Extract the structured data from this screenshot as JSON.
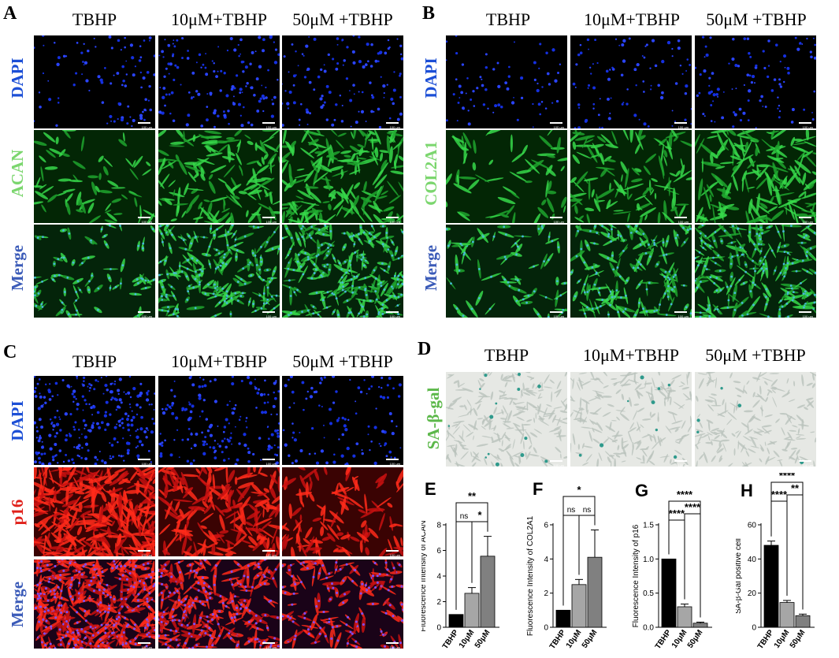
{
  "panels": {
    "A": {
      "label": "A",
      "columns": [
        "TBHP",
        "10μM+TBHP",
        "50μM +TBHP"
      ],
      "rows": [
        "DAPI",
        "ACAN",
        "Merge"
      ]
    },
    "B": {
      "label": "B",
      "columns": [
        "TBHP",
        "10μM+TBHP",
        "50μM +TBHP"
      ],
      "rows": [
        "DAPI",
        "COL2A1",
        "Merge"
      ]
    },
    "C": {
      "label": "C",
      "columns": [
        "TBHP",
        "10μM+TBHP",
        "50μM +TBHP"
      ],
      "rows": [
        "DAPI",
        "p16",
        "Merge"
      ]
    },
    "D": {
      "label": "D",
      "columns": [
        "TBHP",
        "10μM+TBHP",
        "50μM +TBHP"
      ],
      "rows": [
        "SA-β-gal"
      ]
    }
  },
  "scale_text": "100 μm",
  "colors": {
    "dapi": "#1a3cff",
    "green": "#2fd63a",
    "red": "#ff2a1a",
    "merge_blue": "#3b5bd0",
    "sa_green": "#5cb84a",
    "bar_black": "#000000",
    "bar_gray1": "#a6a6a6",
    "bar_gray2": "#808080"
  },
  "chart_data": [
    {
      "label": "E",
      "type": "bar",
      "categories": [
        "TBHP",
        "10μM",
        "50μM"
      ],
      "values": [
        1.0,
        2.65,
        5.55
      ],
      "errors": [
        0,
        0.45,
        1.55
      ],
      "ylabel": "Fluorescence Intensity of ACAN",
      "ylim": [
        0,
        8
      ],
      "yticks": [
        0,
        2,
        4,
        6,
        8
      ],
      "sig": [
        {
          "from": 0,
          "to": 2,
          "text": "**",
          "level": 2
        },
        {
          "from": 0,
          "to": 1,
          "text": "ns",
          "level": 1
        },
        {
          "from": 1,
          "to": 2,
          "text": "*",
          "level": 1
        }
      ]
    },
    {
      "label": "F",
      "type": "bar",
      "categories": [
        "TBHP",
        "10μM",
        "50μM"
      ],
      "values": [
        1.0,
        2.5,
        4.1
      ],
      "errors": [
        0,
        0.3,
        1.6
      ],
      "ylabel": "Fluorescence Intensity of COL2A1",
      "ylim": [
        0,
        6
      ],
      "yticks": [
        0,
        2,
        4,
        6
      ],
      "sig": [
        {
          "from": 0,
          "to": 2,
          "text": "*",
          "level": 2
        },
        {
          "from": 0,
          "to": 1,
          "text": "ns",
          "level": 1
        },
        {
          "from": 1,
          "to": 2,
          "text": "ns",
          "level": 1
        }
      ]
    },
    {
      "label": "G",
      "type": "bar",
      "categories": [
        "TBHP",
        "10μM",
        "50μM"
      ],
      "values": [
        1.0,
        0.3,
        0.06
      ],
      "errors": [
        0,
        0.04,
        0.015
      ],
      "ylabel": "Fluorescence Intensity of p16",
      "ylim": [
        0,
        1.5
      ],
      "yticks": [
        0.0,
        0.5,
        1.0,
        1.5
      ],
      "sig": [
        {
          "from": 0,
          "to": 2,
          "text": "****",
          "level": 2
        },
        {
          "from": 0,
          "to": 1,
          "text": "****",
          "level": 1
        },
        {
          "from": 1,
          "to": 2,
          "text": "****",
          "level": 1.5
        }
      ]
    },
    {
      "label": "H",
      "type": "bar",
      "categories": [
        "TBHP",
        "10μM",
        "50μM"
      ],
      "values": [
        48,
        14.5,
        6.8
      ],
      "errors": [
        2.5,
        1.2,
        0.9
      ],
      "ylabel": "SA-β-Gal positive cell",
      "ylim": [
        0,
        60
      ],
      "yticks": [
        0,
        20,
        40,
        60
      ],
      "sig": [
        {
          "from": 0,
          "to": 2,
          "text": "****",
          "level": 2
        },
        {
          "from": 0,
          "to": 1,
          "text": "****",
          "level": 1
        },
        {
          "from": 1,
          "to": 2,
          "text": "**",
          "level": 1.5
        }
      ]
    }
  ]
}
